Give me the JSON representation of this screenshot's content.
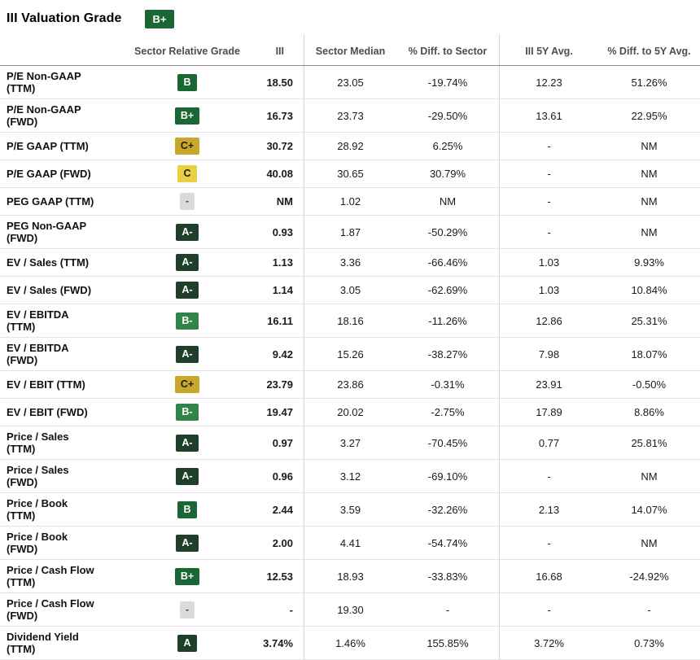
{
  "page": {
    "title": "III Valuation Grade",
    "overall_grade": "B+"
  },
  "grade_colors": {
    "A": {
      "bg": "#203F2B",
      "fg": "#FFFFFF"
    },
    "A-": {
      "bg": "#203F2B",
      "fg": "#FFFFFF"
    },
    "B+": {
      "bg": "#1A6634",
      "fg": "#FFFFFF"
    },
    "B": {
      "bg": "#1A6634",
      "fg": "#FFFFFF"
    },
    "B-": {
      "bg": "#318449",
      "fg": "#FFFFFF"
    },
    "C+": {
      "bg": "#C8A72B",
      "fg": "#1A1A1A"
    },
    "C": {
      "bg": "#E9CF41",
      "fg": "#1A1A1A"
    },
    "-": {
      "bg": "#DBDBDB",
      "fg": "#4D4D4D"
    }
  },
  "table": {
    "columns": [
      "",
      "Sector Relative Grade",
      "III",
      "Sector Median",
      "% Diff. to Sector",
      "III 5Y Avg.",
      "% Diff. to 5Y Avg."
    ],
    "rows": [
      {
        "label": "P/E Non-GAAP (TTM)",
        "grade": "B",
        "iii": "18.50",
        "sector_median": "23.05",
        "diff_sector": "-19.74%",
        "avg_5y": "12.23",
        "diff_5y": "51.26%"
      },
      {
        "label": "P/E Non-GAAP (FWD)",
        "grade": "B+",
        "iii": "16.73",
        "sector_median": "23.73",
        "diff_sector": "-29.50%",
        "avg_5y": "13.61",
        "diff_5y": "22.95%"
      },
      {
        "label": "P/E GAAP (TTM)",
        "grade": "C+",
        "iii": "30.72",
        "sector_median": "28.92",
        "diff_sector": "6.25%",
        "avg_5y": "-",
        "diff_5y": "NM"
      },
      {
        "label": "P/E GAAP (FWD)",
        "grade": "C",
        "iii": "40.08",
        "sector_median": "30.65",
        "diff_sector": "30.79%",
        "avg_5y": "-",
        "diff_5y": "NM"
      },
      {
        "label": "PEG GAAP (TTM)",
        "grade": "-",
        "iii": "NM",
        "sector_median": "1.02",
        "diff_sector": "NM",
        "avg_5y": "-",
        "diff_5y": "NM"
      },
      {
        "label": "PEG Non-GAAP (FWD)",
        "grade": "A-",
        "iii": "0.93",
        "sector_median": "1.87",
        "diff_sector": "-50.29%",
        "avg_5y": "-",
        "diff_5y": "NM"
      },
      {
        "label": "EV / Sales (TTM)",
        "grade": "A-",
        "iii": "1.13",
        "sector_median": "3.36",
        "diff_sector": "-66.46%",
        "avg_5y": "1.03",
        "diff_5y": "9.93%"
      },
      {
        "label": "EV / Sales (FWD)",
        "grade": "A-",
        "iii": "1.14",
        "sector_median": "3.05",
        "diff_sector": "-62.69%",
        "avg_5y": "1.03",
        "diff_5y": "10.84%"
      },
      {
        "label": "EV / EBITDA (TTM)",
        "grade": "B-",
        "iii": "16.11",
        "sector_median": "18.16",
        "diff_sector": "-11.26%",
        "avg_5y": "12.86",
        "diff_5y": "25.31%"
      },
      {
        "label": "EV / EBITDA (FWD)",
        "grade": "A-",
        "iii": "9.42",
        "sector_median": "15.26",
        "diff_sector": "-38.27%",
        "avg_5y": "7.98",
        "diff_5y": "18.07%"
      },
      {
        "label": "EV / EBIT (TTM)",
        "grade": "C+",
        "iii": "23.79",
        "sector_median": "23.86",
        "diff_sector": "-0.31%",
        "avg_5y": "23.91",
        "diff_5y": "-0.50%"
      },
      {
        "label": "EV / EBIT (FWD)",
        "grade": "B-",
        "iii": "19.47",
        "sector_median": "20.02",
        "diff_sector": "-2.75%",
        "avg_5y": "17.89",
        "diff_5y": "8.86%"
      },
      {
        "label": "Price / Sales (TTM)",
        "grade": "A-",
        "iii": "0.97",
        "sector_median": "3.27",
        "diff_sector": "-70.45%",
        "avg_5y": "0.77",
        "diff_5y": "25.81%"
      },
      {
        "label": "Price / Sales (FWD)",
        "grade": "A-",
        "iii": "0.96",
        "sector_median": "3.12",
        "diff_sector": "-69.10%",
        "avg_5y": "-",
        "diff_5y": "NM"
      },
      {
        "label": "Price / Book (TTM)",
        "grade": "B",
        "iii": "2.44",
        "sector_median": "3.59",
        "diff_sector": "-32.26%",
        "avg_5y": "2.13",
        "diff_5y": "14.07%"
      },
      {
        "label": "Price / Book (FWD)",
        "grade": "A-",
        "iii": "2.00",
        "sector_median": "4.41",
        "diff_sector": "-54.74%",
        "avg_5y": "-",
        "diff_5y": "NM"
      },
      {
        "label": "Price / Cash Flow (TTM)",
        "grade": "B+",
        "iii": "12.53",
        "sector_median": "18.93",
        "diff_sector": "-33.83%",
        "avg_5y": "16.68",
        "diff_5y": "-24.92%"
      },
      {
        "label": "Price / Cash Flow (FWD)",
        "grade": "-",
        "iii": "-",
        "sector_median": "19.30",
        "diff_sector": "-",
        "avg_5y": "-",
        "diff_5y": "-"
      },
      {
        "label": "Dividend Yield (TTM)",
        "grade": "A",
        "iii": "3.74%",
        "sector_median": "1.46%",
        "diff_sector": "155.85%",
        "avg_5y": "3.72%",
        "diff_5y": "0.73%"
      }
    ]
  }
}
